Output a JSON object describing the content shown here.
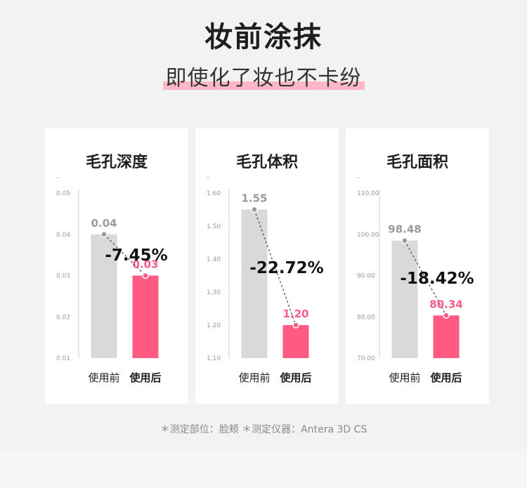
{
  "header": {
    "title": "妆前涂抹",
    "subtitle": "即使化了妆也不卡纷"
  },
  "colors": {
    "before_bar": "#d9d9d9",
    "after_bar": "#ff5a82",
    "before_label": "#9a9a9a",
    "after_label": "#ff5a82",
    "subtitle_highlight": "#ffb7c8"
  },
  "chart_data": [
    {
      "type": "bar",
      "title": "毛孔深度",
      "categories": [
        "使用前",
        "使用后"
      ],
      "values": [
        0.04,
        0.03
      ],
      "value_labels": [
        "0.04",
        "0.03"
      ],
      "change_label": "-7.45%",
      "yticks": [
        0.05,
        0.04,
        0.03,
        0.02,
        0.01
      ],
      "ytick_labels": [
        "0.05",
        "0.04",
        "0.03",
        "0.02",
        "0.01"
      ],
      "ylim": [
        0.01,
        0.05
      ]
    },
    {
      "type": "bar",
      "title": "毛孔体积",
      "categories": [
        "使用前",
        "使用后"
      ],
      "values": [
        1.55,
        1.2
      ],
      "value_labels": [
        "1.55",
        "1.20"
      ],
      "change_label": "-22.72%",
      "yticks": [
        1.6,
        1.5,
        1.4,
        1.3,
        1.2,
        1.1
      ],
      "ytick_labels": [
        "1.60",
        "1.50",
        "1.40",
        "1.30",
        "1.20",
        "1.10"
      ],
      "ylim": [
        1.1,
        1.6
      ]
    },
    {
      "type": "bar",
      "title": "毛孔面积",
      "categories": [
        "使用前",
        "使用后"
      ],
      "values": [
        98.48,
        80.34
      ],
      "value_labels": [
        "98.48",
        "80.34"
      ],
      "change_label": "-18.42%",
      "yticks": [
        110,
        100,
        90,
        80,
        70
      ],
      "ytick_labels": [
        "110.00",
        "100.00",
        "90.00",
        "80.00",
        "70.00"
      ],
      "ylim": [
        70,
        110
      ]
    }
  ],
  "footnote": "＊测定部位：脸颊 ＊测定仪器：Antera 3D CS"
}
